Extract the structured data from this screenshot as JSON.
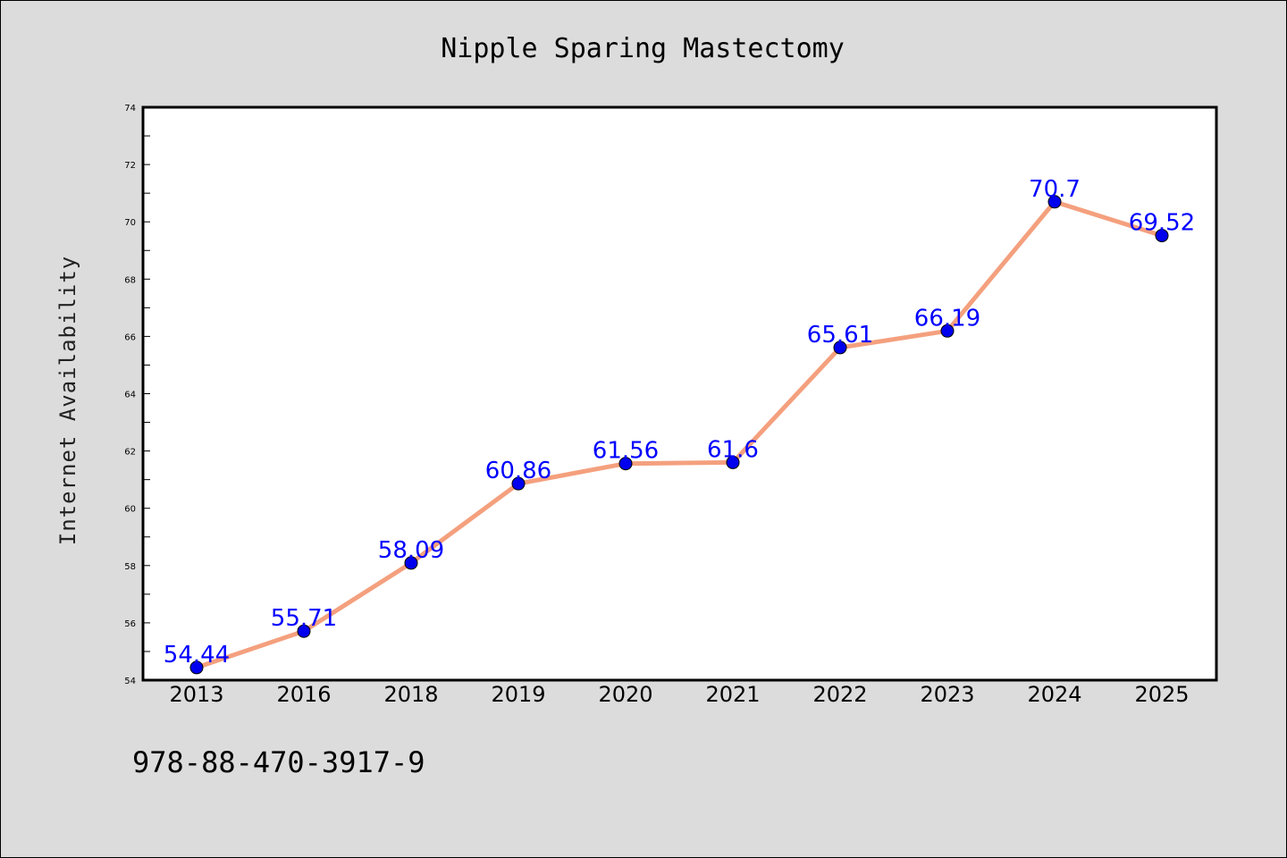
{
  "chart_data": {
    "type": "line",
    "title": "Nipple Sparing Mastectomy",
    "ylabel": "Internet Availability",
    "xlabel": "",
    "categories": [
      "2013",
      "2016",
      "2018",
      "2019",
      "2020",
      "2021",
      "2022",
      "2023",
      "2024",
      "2025"
    ],
    "values": [
      54.44,
      55.71,
      58.09,
      60.86,
      61.56,
      61.6,
      65.61,
      66.19,
      70.7,
      69.52
    ],
    "data_labels": [
      "54.44",
      "55.71",
      "58.09",
      "60.86",
      "61.56",
      "61.6",
      "65.61",
      "66.19",
      "70.7",
      "69.52"
    ],
    "ylim": [
      54,
      74
    ],
    "yticks": [
      54,
      56,
      58,
      60,
      62,
      64,
      66,
      68,
      70,
      72,
      74
    ],
    "grid": false,
    "line_color": "#f4a07e",
    "marker_color": "#0000ee",
    "label_color": "#0000ff",
    "background": "#ffffff",
    "page_background": "#dcdcdc"
  },
  "footer": {
    "isbn": "978-88-470-3917-9"
  }
}
